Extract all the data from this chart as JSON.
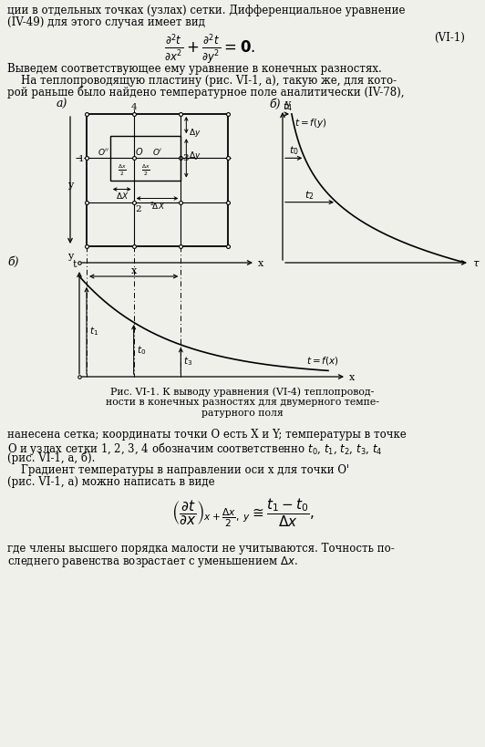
{
  "bg_color": "#f0f0eb",
  "top_text": [
    "ции в отдельных точках (узлах) сетки. Дифференциальное уравнение",
    "(IV-49) для этого случая имеет вид"
  ],
  "mid_text": [
    "Выведем соответствующее ему уравнение в конечных разностях.",
    "    На теплопроводящую пластину (рис. VI-1, а), такую же, для кото-",
    "рой раньше было найдено температурное поле аналитически (IV-78),"
  ],
  "caption": [
    "Рис. VI-1. К выводу уравнения (VI-4) теплопровод-",
    "ности в конечных разностях для двумерного темпе-",
    "ратурного поля"
  ],
  "bot_text": [
    "нанесена сетка; координаты точки O есть X и Y; температуры в точке",
    "O и узлах сетки 1, 2, 3, 4 обозначим соответственно $t_0$, $t_1$, $t_2$, $t_3$, $t_4$",
    "(рис. VI-1, а, б).",
    "    Градиент температуры в направлении оси x для точки O'",
    "(рис. VI-1, а) можно написать в виде"
  ],
  "last_text": [
    "где члены высшего порядка малости не учитываются. Точность по-",
    "следнего равенства возрастает с уменьшением $\\Delta x$."
  ]
}
